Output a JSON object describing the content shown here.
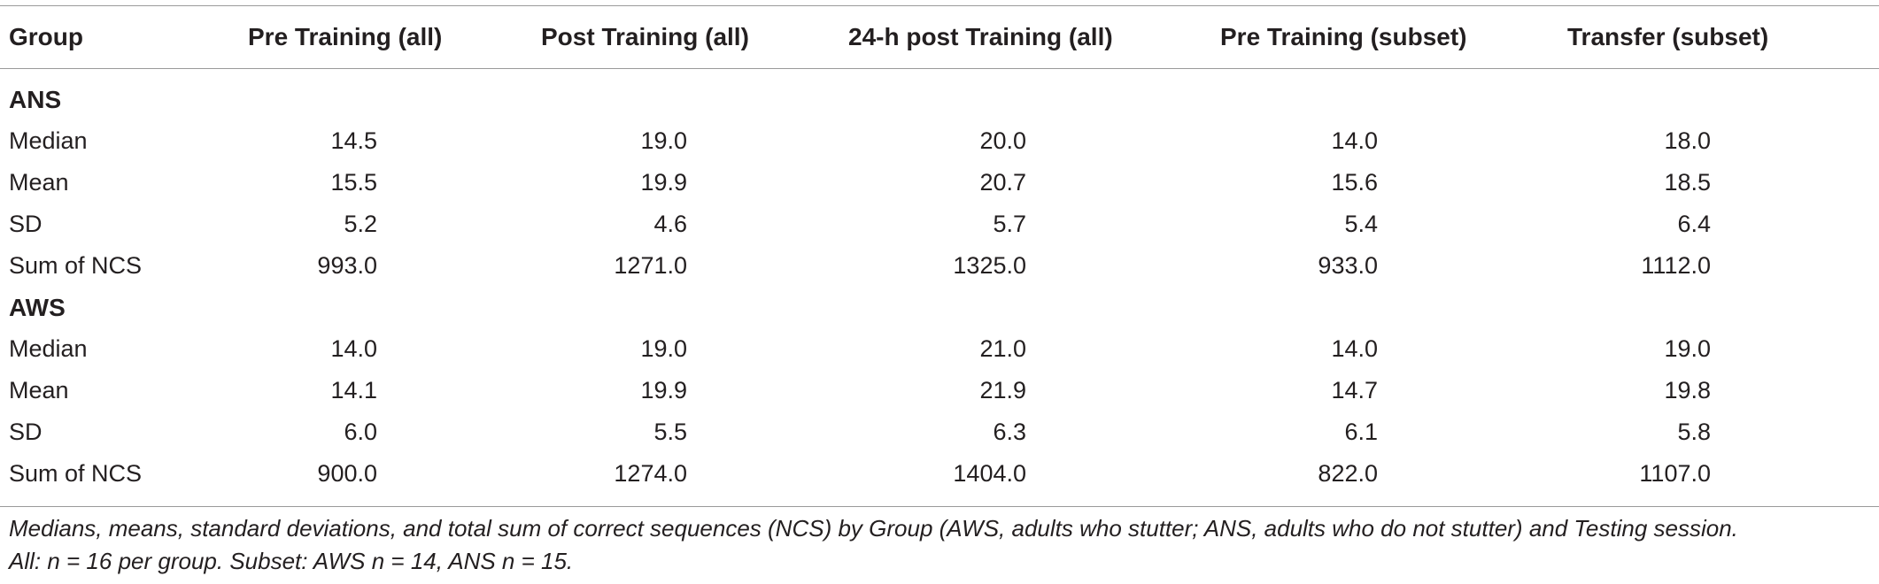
{
  "headers": [
    "Group",
    "Pre Training (all)",
    "Post Training (all)",
    "24-h post Training (all)",
    "Pre Training (subset)",
    "Transfer (subset)"
  ],
  "groups": [
    {
      "name": "ANS",
      "rows": [
        {
          "label": "Median",
          "values": [
            "14.5",
            "19.0",
            "20.0",
            "14.0",
            "18.0"
          ]
        },
        {
          "label": "Mean",
          "values": [
            "15.5",
            "19.9",
            "20.7",
            "15.6",
            "18.5"
          ]
        },
        {
          "label": "SD",
          "values": [
            "5.2",
            "4.6",
            "5.7",
            "5.4",
            "6.4"
          ]
        },
        {
          "label": "Sum of NCS",
          "values": [
            "993.0",
            "1271.0",
            "1325.0",
            "933.0",
            "1112.0"
          ]
        }
      ]
    },
    {
      "name": "AWS",
      "rows": [
        {
          "label": "Median",
          "values": [
            "14.0",
            "19.0",
            "21.0",
            "14.0",
            "19.0"
          ]
        },
        {
          "label": "Mean",
          "values": [
            "14.1",
            "19.9",
            "21.9",
            "14.7",
            "19.8"
          ]
        },
        {
          "label": "SD",
          "values": [
            "6.0",
            "5.5",
            "6.3",
            "6.1",
            "5.8"
          ]
        },
        {
          "label": "Sum of NCS",
          "values": [
            "900.0",
            "1274.0",
            "1404.0",
            "822.0",
            "1107.0"
          ]
        }
      ]
    }
  ],
  "caption": {
    "line1": "Medians, means, standard deviations, and total sum of correct sequences (NCS) by Group (AWS, adults who stutter; ANS, adults who do not stutter) and Testing session.",
    "line2": "All: n = 16 per group. Subset: AWS n = 14, ANS n = 15."
  }
}
